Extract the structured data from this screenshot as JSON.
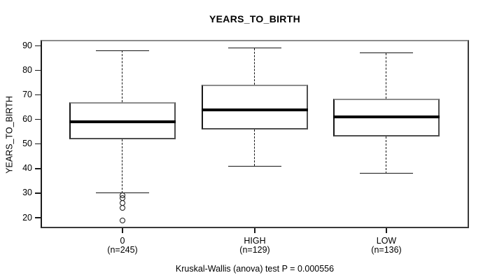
{
  "title": "YEARS_TO_BIRTH",
  "footer": "Kruskal-Wallis (anova) test P = 0.000556",
  "y_axis": {
    "label": "YEARS_TO_BIRTH",
    "ticks": [
      90,
      80,
      70,
      60,
      50,
      40,
      30,
      20
    ]
  },
  "colors": {
    "foreground": "#000000",
    "background": "#ffffff",
    "box_fill": "#ffffff",
    "median": "#000000"
  },
  "chart_data": {
    "type": "boxplot",
    "title": "YEARS_TO_BIRTH",
    "xlabel": "",
    "ylabel": "YEARS_TO_BIRTH",
    "annotation": "Kruskal-Wallis (anova) test P = 0.000556",
    "y_ticks": [
      20,
      30,
      40,
      50,
      60,
      70,
      80,
      90
    ],
    "ylim": [
      15.5,
      92.5
    ],
    "grid": false,
    "legend": false,
    "groups": [
      {
        "label": "0",
        "n_label": "(n=245)",
        "n": 245,
        "whisker_low": 30,
        "q1": 52,
        "median": 59,
        "q3": 67,
        "whisker_high": 88,
        "outliers": [
          29,
          28,
          26,
          24,
          19
        ]
      },
      {
        "label": "HIGH",
        "n_label": "(n=129)",
        "n": 129,
        "whisker_low": 41,
        "q1": 56,
        "median": 64,
        "q3": 74,
        "whisker_high": 89,
        "outliers": []
      },
      {
        "label": "LOW",
        "n_label": "(n=136)",
        "n": 136,
        "whisker_low": 38,
        "q1": 53,
        "median": 61,
        "q3": 68.5,
        "whisker_high": 87,
        "outliers": []
      }
    ]
  }
}
